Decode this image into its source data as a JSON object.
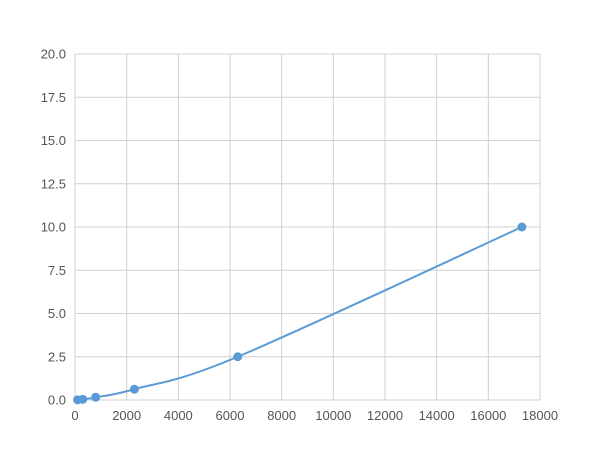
{
  "chart_data": {
    "type": "line",
    "title": "",
    "xlabel": "",
    "ylabel": "",
    "xlim": [
      0,
      18000
    ],
    "ylim": [
      0,
      20
    ],
    "x_ticks": [
      "0",
      "2000",
      "4000",
      "6000",
      "8000",
      "10000",
      "12000",
      "14000",
      "16000",
      "18000"
    ],
    "y_ticks": [
      "0.0",
      "2.5",
      "5.0",
      "7.5",
      "10.0",
      "12.5",
      "15.0",
      "17.5",
      "20.0"
    ],
    "grid": true,
    "series": [
      {
        "x": [
          100,
          300,
          800,
          2300,
          6300,
          17300
        ],
        "y": [
          0.0098,
          0.039,
          0.156,
          0.625,
          2.5,
          10
        ],
        "color": "#5b9bd5",
        "markers": true,
        "smooth": true
      }
    ]
  }
}
